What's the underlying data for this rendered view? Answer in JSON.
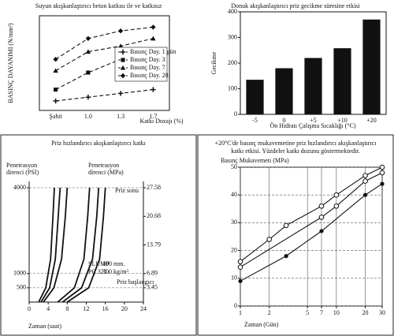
{
  "chart_data": [
    {
      "type": "line",
      "title": "Suyun akışkanlaştırıcı beton katkısı ile ve katkısız",
      "ylabel": "BASINÇ DAYANIMI (N/mm²)",
      "xlabel": "Katkı Dozajı (%)",
      "categories": [
        "Şahit",
        "1.0",
        "1.3",
        "1.7"
      ],
      "ylim": [
        0,
        50
      ],
      "legend": "right",
      "series": [
        {
          "name": "Basınç Day. 1 gün",
          "marker": "cross",
          "color": "#111111",
          "values": [
            5,
            7,
            9,
            11
          ]
        },
        {
          "name": "Basınç Day. 3",
          "marker": "square",
          "color": "#111111",
          "values": [
            11,
            20,
            27,
            31
          ]
        },
        {
          "name": "Basınç Day. 7",
          "marker": "triangle",
          "color": "#111111",
          "values": [
            21,
            31,
            34,
            38
          ]
        },
        {
          "name": "Basınç Day. 28",
          "marker": "diamond",
          "color": "#111111",
          "values": [
            27,
            38,
            42,
            44
          ]
        }
      ]
    },
    {
      "type": "bar",
      "title": "Donuk akışkanlaştırıcı priz gecikme süresine etkisi",
      "ylabel": "Gecikme",
      "xlabel": "Ön Hidratı Çalışma Sıcaklığı (°C)",
      "categories": [
        "-5",
        "0",
        "+5",
        "+10",
        "+20"
      ],
      "values": [
        135,
        180,
        220,
        258,
        370
      ],
      "color": "#111111",
      "ylim": [
        0,
        400
      ],
      "yticks": [
        0,
        100,
        200,
        300,
        400
      ]
    },
    {
      "type": "line",
      "title": "Priz hızlandırıcı akışkanlaştırıcı katkı",
      "ylabel": [
        "Penetrasyon",
        "direnci (PSI)"
      ],
      "y2label": [
        "Penetrasyon",
        "direnci (MPa)"
      ],
      "xlabel": "Zaman (saat)",
      "xlim": [
        0,
        24
      ],
      "xticks": [
        0,
        4,
        8,
        12,
        16,
        20,
        24
      ],
      "ylim": [
        0,
        4000
      ],
      "yticks": [
        500,
        1000,
        4000
      ],
      "y2lim": [
        0,
        27.58
      ],
      "y2ticks": [
        3.45,
        6.89,
        13.79,
        20.68,
        27.58
      ],
      "grid": true,
      "annotations": [
        "Priz sonu",
        "SLUMP",
        "100 mm.",
        "PÇ 325",
        "300 kg/m³",
        "Priz başlangıcı"
      ],
      "series": [
        {
          "color": "#111111",
          "x": [
            2,
            3.5,
            4.5,
            5,
            5.3
          ],
          "values": [
            0,
            500,
            1500,
            3000,
            4000
          ]
        },
        {
          "color": "#111111",
          "x": [
            2.5,
            4.3,
            5.5,
            6.1,
            6.5
          ],
          "values": [
            0,
            500,
            1500,
            3000,
            4000
          ]
        },
        {
          "color": "#111111",
          "x": [
            3,
            5.2,
            6.8,
            7.6,
            8
          ],
          "values": [
            0,
            500,
            1500,
            3000,
            4000
          ]
        },
        {
          "color": "#111111",
          "x": [
            6,
            9.5,
            11.5,
            12.3,
            12.7
          ],
          "values": [
            0,
            500,
            1500,
            3000,
            4000
          ]
        },
        {
          "color": "#111111",
          "x": [
            7,
            11,
            13.3,
            14.2,
            14.6
          ],
          "values": [
            0,
            500,
            1500,
            3000,
            4000
          ]
        },
        {
          "color": "#111111",
          "x": [
            8,
            12.5,
            14.8,
            15.6,
            16
          ],
          "values": [
            0,
            500,
            1500,
            3000,
            4000
          ]
        }
      ]
    },
    {
      "type": "line",
      "title": [
        "+20°C'de basınç mukavemetine priz hızlandırıcı akışkanlaştırıcı",
        "katkı etkisi. Yüzdeler katkı dozunu göstermektedir."
      ],
      "ylabel": "Basınç Mukavemeti (MPa)",
      "xlabel": "Zaman (Gün)",
      "xscale": "log",
      "xlim": [
        1,
        30
      ],
      "xticks": [
        1,
        2,
        5,
        7,
        10,
        20,
        30
      ],
      "ylim": [
        0,
        50
      ],
      "yticks": [
        0,
        10,
        20,
        30,
        40,
        50
      ],
      "grid": true,
      "series": [
        {
          "marker": "circle-open",
          "color": "#111111",
          "x": [
            1,
            2,
            3,
            7,
            10,
            20,
            30
          ],
          "values": [
            16,
            24,
            29,
            36,
            40,
            47,
            50
          ]
        },
        {
          "marker": "circle-open",
          "color": "#111111",
          "x": [
            1,
            7,
            10,
            20,
            30
          ],
          "values": [
            14,
            32,
            36,
            45,
            48
          ]
        },
        {
          "marker": "circle",
          "color": "#111111",
          "x": [
            1,
            3,
            7,
            20,
            30
          ],
          "values": [
            9,
            18,
            27,
            40,
            44
          ]
        }
      ]
    }
  ]
}
